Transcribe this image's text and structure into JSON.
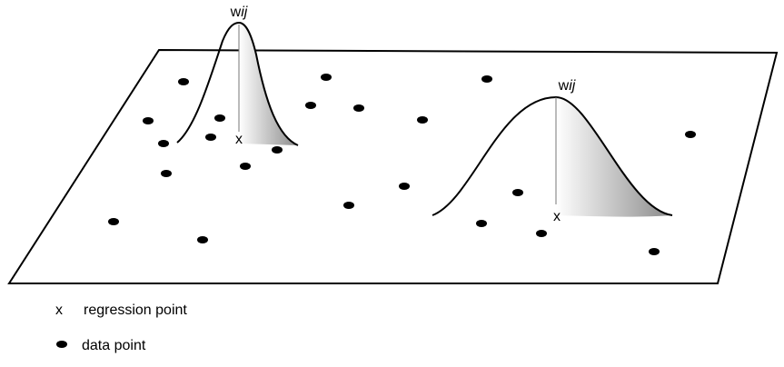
{
  "kernels": [
    {
      "label": {
        "base": "w",
        "italic": "ij"
      }
    },
    {
      "label": {
        "base": "w",
        "italic": "ij"
      }
    }
  ],
  "regression_marker": "x",
  "legend": {
    "regression": "regression point",
    "data": "data point"
  }
}
